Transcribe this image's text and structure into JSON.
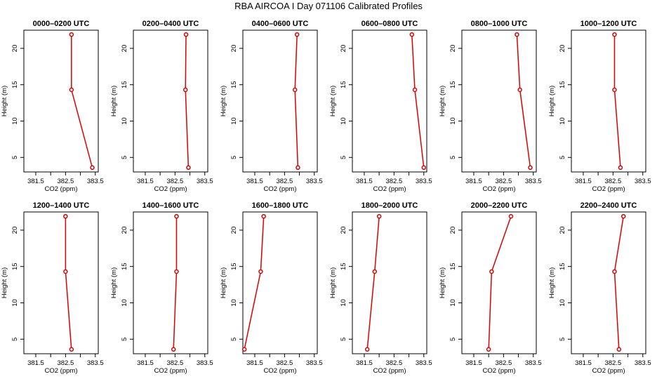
{
  "title": "RBA AIRCOA I  Day 071106  Calibrated Profiles",
  "styles": {
    "line_color": "#dd0000",
    "axis_color": "#000000",
    "background": "#ffffff"
  },
  "chart_data": [
    {
      "type": "line",
      "title": "0000–0200 UTC",
      "xlabel": "CO2 (ppm)",
      "ylabel": "Height (m)",
      "xlim": [
        381.1,
        383.6
      ],
      "ylim": [
        3.0,
        22.5
      ],
      "xticks": [
        "381.5",
        "382.5",
        "383.5"
      ],
      "yticks": [
        "5",
        "10",
        "15",
        "20"
      ],
      "x": [
        383.4,
        382.7,
        382.7
      ],
      "y": [
        3.6,
        14.3,
        21.9
      ]
    },
    {
      "type": "line",
      "title": "0200–0400 UTC",
      "xlabel": "CO2 (ppm)",
      "ylabel": "Height (m)",
      "xlim": [
        381.1,
        383.6
      ],
      "ylim": [
        3.0,
        22.5
      ],
      "xticks": [
        "381.5",
        "382.5",
        "383.5"
      ],
      "yticks": [
        "5",
        "10",
        "15",
        "20"
      ],
      "x": [
        382.95,
        382.85,
        382.87
      ],
      "y": [
        3.6,
        14.3,
        21.9
      ]
    },
    {
      "type": "line",
      "title": "0400–0600 UTC",
      "xlabel": "CO2 (ppm)",
      "ylabel": "Height (m)",
      "xlim": [
        381.1,
        383.6
      ],
      "ylim": [
        3.0,
        22.5
      ],
      "xticks": [
        "381.5",
        "382.5",
        "383.5"
      ],
      "yticks": [
        "5",
        "10",
        "15",
        "20"
      ],
      "x": [
        382.95,
        382.85,
        382.92
      ],
      "y": [
        3.6,
        14.3,
        21.9
      ]
    },
    {
      "type": "line",
      "title": "0600–0800 UTC",
      "xlabel": "CO2 (ppm)",
      "ylabel": "Height (m)",
      "xlim": [
        381.1,
        383.6
      ],
      "ylim": [
        3.0,
        22.5
      ],
      "xticks": [
        "381.5",
        "382.5",
        "383.5"
      ],
      "yticks": [
        "5",
        "10",
        "15",
        "20"
      ],
      "x": [
        383.5,
        383.2,
        383.1
      ],
      "y": [
        3.6,
        14.3,
        21.9
      ]
    },
    {
      "type": "line",
      "title": "0800–1000 UTC",
      "xlabel": "CO2 (ppm)",
      "ylabel": "Height (m)",
      "xlim": [
        381.1,
        383.6
      ],
      "ylim": [
        3.0,
        22.5
      ],
      "xticks": [
        "381.5",
        "382.5",
        "383.5"
      ],
      "yticks": [
        "5",
        "10",
        "15",
        "20"
      ],
      "x": [
        383.4,
        383.05,
        382.95
      ],
      "y": [
        3.6,
        14.3,
        21.9
      ]
    },
    {
      "type": "line",
      "title": "1000–1200 UTC",
      "xlabel": "CO2 (ppm)",
      "ylabel": "Height (m)",
      "xlim": [
        381.1,
        383.6
      ],
      "ylim": [
        3.0,
        22.5
      ],
      "xticks": [
        "381.5",
        "382.5",
        "383.5"
      ],
      "yticks": [
        "5",
        "10",
        "15",
        "20"
      ],
      "x": [
        382.75,
        382.55,
        382.55
      ],
      "y": [
        3.6,
        14.3,
        21.9
      ]
    },
    {
      "type": "line",
      "title": "1200–1400 UTC",
      "xlabel": "CO2 (ppm)",
      "ylabel": "Height (m)",
      "xlim": [
        381.1,
        383.6
      ],
      "ylim": [
        3.0,
        22.5
      ],
      "xticks": [
        "381.5",
        "382.5",
        "383.5"
      ],
      "yticks": [
        "5",
        "10",
        "15",
        "20"
      ],
      "x": [
        382.7,
        382.5,
        382.5
      ],
      "y": [
        3.6,
        14.3,
        21.9
      ]
    },
    {
      "type": "line",
      "title": "1400–1600 UTC",
      "xlabel": "CO2 (ppm)",
      "ylabel": "Height (m)",
      "xlim": [
        381.1,
        383.6
      ],
      "ylim": [
        3.0,
        22.5
      ],
      "xticks": [
        "381.5",
        "382.5",
        "383.5"
      ],
      "yticks": [
        "5",
        "10",
        "15",
        "20"
      ],
      "x": [
        382.45,
        382.55,
        382.55
      ],
      "y": [
        3.6,
        14.3,
        21.9
      ]
    },
    {
      "type": "line",
      "title": "1600–1800 UTC",
      "xlabel": "CO2 (ppm)",
      "ylabel": "Height (m)",
      "xlim": [
        381.1,
        383.6
      ],
      "ylim": [
        3.0,
        22.5
      ],
      "xticks": [
        "381.5",
        "382.5",
        "383.5"
      ],
      "yticks": [
        "5",
        "10",
        "15",
        "20"
      ],
      "x": [
        381.15,
        381.7,
        381.8
      ],
      "y": [
        3.6,
        14.3,
        21.9
      ]
    },
    {
      "type": "line",
      "title": "1800–2000 UTC",
      "xlabel": "CO2 (ppm)",
      "ylabel": "Height (m)",
      "xlim": [
        381.1,
        383.6
      ],
      "ylim": [
        3.0,
        22.5
      ],
      "xticks": [
        "381.5",
        "382.5",
        "383.5"
      ],
      "yticks": [
        "5",
        "10",
        "15",
        "20"
      ],
      "x": [
        381.6,
        381.85,
        382.0
      ],
      "y": [
        3.6,
        14.3,
        21.9
      ]
    },
    {
      "type": "line",
      "title": "2000–2200 UTC",
      "xlabel": "CO2 (ppm)",
      "ylabel": "Height (m)",
      "xlim": [
        381.1,
        383.6
      ],
      "ylim": [
        3.0,
        22.5
      ],
      "xticks": [
        "381.5",
        "382.5",
        "383.5"
      ],
      "yticks": [
        "5",
        "10",
        "15",
        "20"
      ],
      "x": [
        382.0,
        382.1,
        382.75
      ],
      "y": [
        3.6,
        14.3,
        21.9
      ]
    },
    {
      "type": "line",
      "title": "2200–2400 UTC",
      "xlabel": "CO2 (ppm)",
      "ylabel": "Height (m)",
      "xlim": [
        381.1,
        383.6
      ],
      "ylim": [
        3.0,
        22.5
      ],
      "xticks": [
        "381.5",
        "382.5",
        "383.5"
      ],
      "yticks": [
        "5",
        "10",
        "15",
        "20"
      ],
      "x": [
        382.7,
        382.55,
        382.85
      ],
      "y": [
        3.6,
        14.3,
        21.9
      ]
    }
  ]
}
